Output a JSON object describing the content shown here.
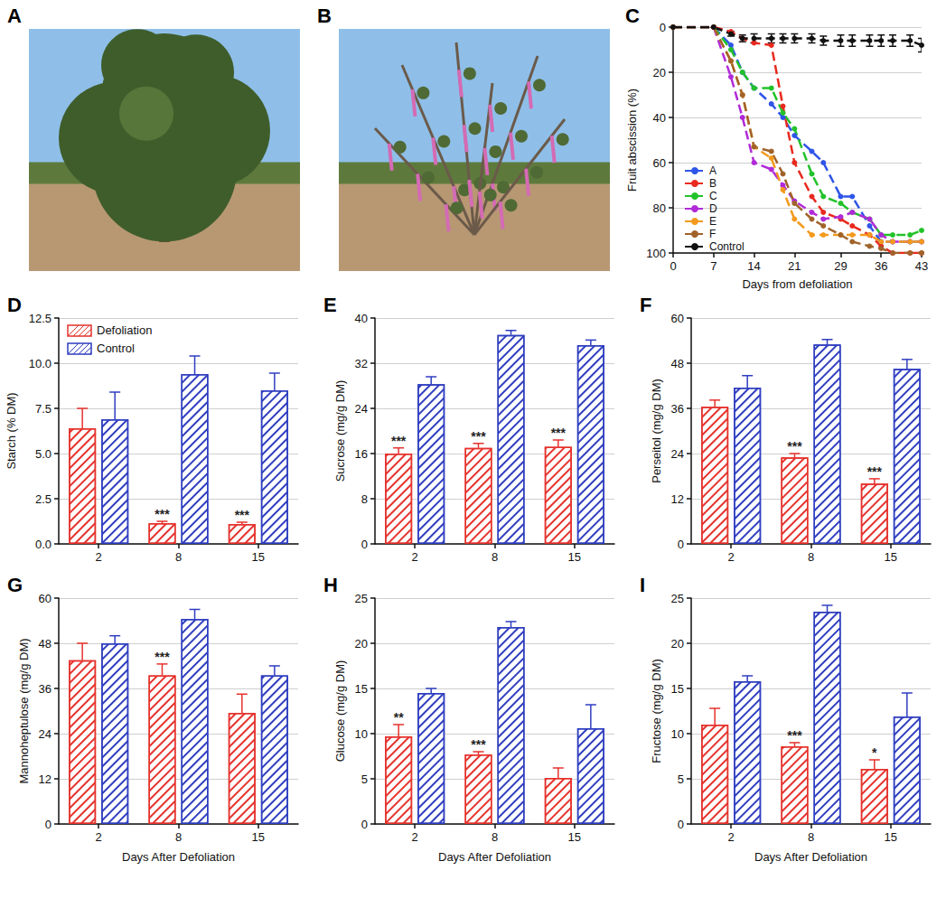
{
  "photos": [
    {
      "panel": "A"
    },
    {
      "panel": "B"
    }
  ],
  "chart_data": [
    {
      "panel": "C",
      "type": "line",
      "xlabel": "Days from defoliation",
      "ylabel": "Fruit abscission (%)",
      "xlim": [
        0,
        43
      ],
      "xticks": [
        0,
        7,
        14,
        21,
        29,
        36,
        43
      ],
      "ylim": [
        100,
        0
      ],
      "yticks": [
        0,
        20,
        40,
        60,
        80,
        100
      ],
      "grid": true,
      "legend": "lower left",
      "marker": "circle",
      "line_style": "dashed",
      "x": [
        0,
        7,
        10,
        12,
        14,
        17,
        19,
        21,
        24,
        26,
        29,
        31,
        34,
        36,
        38,
        41,
        43
      ],
      "series": [
        {
          "name": "A",
          "color": "#2f55e8",
          "values": [
            0,
            0,
            8,
            20,
            27,
            34,
            40,
            48,
            55,
            60,
            75,
            75,
            88,
            95,
            95,
            95,
            95
          ]
        },
        {
          "name": "B",
          "color": "#e8291f",
          "values": [
            0,
            0,
            2,
            5,
            7,
            8,
            35,
            60,
            75,
            82,
            85,
            88,
            92,
            97,
            100,
            100,
            100
          ]
        },
        {
          "name": "C",
          "color": "#22c22a",
          "values": [
            0,
            0,
            10,
            20,
            27,
            27,
            38,
            45,
            65,
            75,
            78,
            82,
            85,
            92,
            92,
            92,
            90
          ]
        },
        {
          "name": "D",
          "color": "#b02ad8",
          "values": [
            0,
            0,
            22,
            40,
            60,
            63,
            70,
            77,
            82,
            85,
            84,
            82,
            85,
            92,
            95,
            95,
            95
          ]
        },
        {
          "name": "E",
          "color": "#f39a1e",
          "values": [
            0,
            0,
            15,
            30,
            53,
            58,
            72,
            85,
            92,
            92,
            92,
            92,
            92,
            95,
            95,
            95,
            95
          ]
        },
        {
          "name": "F",
          "color": "#a0632a",
          "values": [
            0,
            0,
            15,
            30,
            53,
            55,
            65,
            78,
            85,
            88,
            92,
            95,
            97,
            98,
            100,
            100,
            100
          ]
        },
        {
          "name": "Control",
          "color": "#111111",
          "values": [
            0,
            0,
            3,
            5,
            5,
            5,
            5,
            5,
            5,
            6,
            6,
            6,
            6,
            6,
            6,
            6,
            8
          ],
          "errors": [
            0,
            0,
            1,
            1.5,
            2,
            2,
            2,
            2,
            2,
            2,
            2.5,
            2.5,
            2.5,
            2.5,
            2.5,
            2.5,
            3
          ]
        }
      ]
    },
    {
      "panel": "D",
      "type": "bar",
      "ylabel": "Starch (% DM)",
      "categories": [
        "2",
        "8",
        "15"
      ],
      "ylim": [
        0,
        12.5
      ],
      "yticks": [
        {
          "value": 0,
          "label": "0.0"
        },
        2.5,
        {
          "value": 5,
          "label": "5.0"
        },
        7.5,
        {
          "value": 10,
          "label": "10.0"
        },
        12.5
      ],
      "grid": true,
      "legend": "upper left",
      "series": [
        {
          "name": "Defoliation",
          "color": "#e5322d",
          "values": [
            6.4,
            1.15,
            1.1
          ],
          "errors": [
            1.1,
            0.1,
            0.1
          ],
          "significance": [
            null,
            "***",
            "***"
          ]
        },
        {
          "name": "Control",
          "color": "#2f3ec0",
          "values": [
            6.9,
            9.4,
            8.5
          ],
          "errors": [
            1.5,
            1.0,
            0.95
          ]
        }
      ]
    },
    {
      "panel": "E",
      "type": "bar",
      "ylabel": "Sucrose (mg/g DM)",
      "categories": [
        "2",
        "8",
        "15"
      ],
      "ylim": [
        0,
        40
      ],
      "yticks": [
        0,
        8,
        16,
        24,
        32,
        40
      ],
      "grid": true,
      "series": [
        {
          "color": "#e5322d",
          "values": [
            16,
            17,
            17.2
          ],
          "errors": [
            1,
            0.8,
            1.2
          ],
          "significance": [
            "***",
            "***",
            "***"
          ]
        },
        {
          "color": "#2f3ec0",
          "values": [
            28.3,
            37,
            35.2
          ],
          "errors": [
            1.3,
            0.8,
            0.9
          ]
        }
      ]
    },
    {
      "panel": "F",
      "type": "bar",
      "ylabel": "Perseitol (mg/g DM)",
      "categories": [
        "2",
        "8",
        "15"
      ],
      "ylim": [
        0,
        60
      ],
      "yticks": [
        0,
        12,
        24,
        36,
        48,
        60
      ],
      "grid": true,
      "series": [
        {
          "color": "#e5322d",
          "values": [
            36.4,
            23,
            16
          ],
          "errors": [
            1.8,
            1,
            1.3
          ],
          "significance": [
            null,
            "***",
            "***"
          ]
        },
        {
          "color": "#2f3ec0",
          "values": [
            41.5,
            53,
            46.5
          ],
          "errors": [
            3.2,
            1.3,
            2.5
          ]
        }
      ]
    },
    {
      "panel": "G",
      "type": "bar",
      "xlabel": "Days After Defoliation",
      "ylabel": "Mannoheptulose (mg/g DM)",
      "categories": [
        "2",
        "8",
        "15"
      ],
      "ylim": [
        0,
        60
      ],
      "yticks": [
        0,
        12,
        24,
        36,
        48,
        60
      ],
      "grid": true,
      "series": [
        {
          "color": "#e5322d",
          "values": [
            43.5,
            39.5,
            29.5
          ],
          "errors": [
            4.5,
            3,
            5
          ],
          "significance": [
            null,
            "***",
            null
          ]
        },
        {
          "color": "#2f3ec0",
          "values": [
            48,
            54.5,
            39.5
          ],
          "errors": [
            2,
            2.5,
            2.5
          ]
        }
      ]
    },
    {
      "panel": "H",
      "type": "bar",
      "xlabel": "Days After Defoliation",
      "ylabel": "Glucose (mg/g DM)",
      "categories": [
        "2",
        "8",
        "15"
      ],
      "ylim": [
        0,
        25
      ],
      "yticks": [
        0,
        5,
        10,
        15,
        20,
        25
      ],
      "grid": true,
      "series": [
        {
          "color": "#e5322d",
          "values": [
            9.7,
            7.7,
            5.1
          ],
          "errors": [
            1.3,
            0.3,
            1.1
          ],
          "significance": [
            "**",
            "***",
            null
          ]
        },
        {
          "color": "#2f3ec0",
          "values": [
            14.5,
            21.8,
            10.6
          ],
          "errors": [
            0.5,
            0.6,
            2.6
          ]
        }
      ]
    },
    {
      "panel": "I",
      "type": "bar",
      "xlabel": "Days After Defoliation",
      "ylabel": "Fructose (mg/g DM)",
      "categories": [
        "2",
        "8",
        "15"
      ],
      "ylim": [
        0,
        25
      ],
      "yticks": [
        0,
        5,
        10,
        15,
        20,
        25
      ],
      "grid": true,
      "series": [
        {
          "color": "#e5322d",
          "values": [
            11,
            8.6,
            6.1
          ],
          "errors": [
            1.8,
            0.4,
            1.0
          ],
          "significance": [
            null,
            "***",
            "*"
          ]
        },
        {
          "color": "#2f3ec0",
          "values": [
            15.8,
            23.5,
            11.9
          ],
          "errors": [
            0.6,
            0.7,
            2.6
          ]
        }
      ]
    }
  ]
}
